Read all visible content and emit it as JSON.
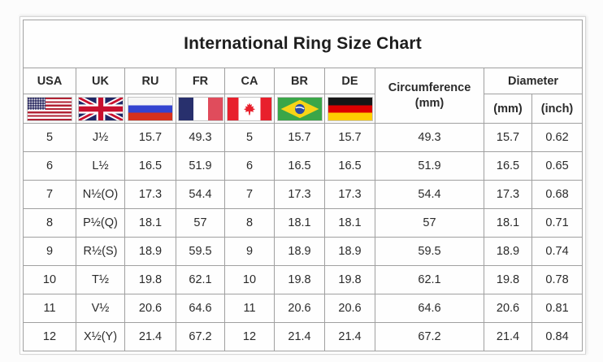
{
  "title": "International Ring Size Chart",
  "header": {
    "countries": [
      {
        "code": "USA",
        "flag_icon": "usa-flag-icon"
      },
      {
        "code": "UK",
        "flag_icon": "uk-flag-icon"
      },
      {
        "code": "RU",
        "flag_icon": "russia-flag-icon"
      },
      {
        "code": "FR",
        "flag_icon": "france-flag-icon"
      },
      {
        "code": "CA",
        "flag_icon": "canada-flag-icon"
      },
      {
        "code": "BR",
        "flag_icon": "brazil-flag-icon"
      },
      {
        "code": "DE",
        "flag_icon": "germany-flag-icon"
      }
    ],
    "circumference": {
      "label": "Circumference",
      "unit": "(mm)"
    },
    "diameter": {
      "label": "Diameter",
      "units": [
        "(mm)",
        "(inch)"
      ]
    }
  },
  "chart_data": {
    "type": "table",
    "title": "International Ring Size Chart",
    "columns": [
      "USA",
      "UK",
      "RU",
      "FR",
      "CA",
      "BR",
      "DE",
      "Circumference (mm)",
      "Diameter (mm)",
      "Diameter (inch)"
    ],
    "rows": [
      [
        "5",
        "J½",
        "15.7",
        "49.3",
        "5",
        "15.7",
        "15.7",
        "49.3",
        "15.7",
        "0.62"
      ],
      [
        "6",
        "L½",
        "16.5",
        "51.9",
        "6",
        "16.5",
        "16.5",
        "51.9",
        "16.5",
        "0.65"
      ],
      [
        "7",
        "N½(O)",
        "17.3",
        "54.4",
        "7",
        "17.3",
        "17.3",
        "54.4",
        "17.3",
        "0.68"
      ],
      [
        "8",
        "P½(Q)",
        "18.1",
        "57",
        "8",
        "18.1",
        "18.1",
        "57",
        "18.1",
        "0.71"
      ],
      [
        "9",
        "R½(S)",
        "18.9",
        "59.5",
        "9",
        "18.9",
        "18.9",
        "59.5",
        "18.9",
        "0.74"
      ],
      [
        "10",
        "T½",
        "19.8",
        "62.1",
        "10",
        "19.8",
        "19.8",
        "62.1",
        "19.8",
        "0.78"
      ],
      [
        "11",
        "V½",
        "20.6",
        "64.6",
        "11",
        "20.6",
        "20.6",
        "64.6",
        "20.6",
        "0.81"
      ],
      [
        "12",
        "X½(Y)",
        "21.4",
        "67.2",
        "12",
        "21.4",
        "21.4",
        "67.2",
        "21.4",
        "0.84"
      ]
    ]
  },
  "colors": {
    "grid": "#a0a0a0",
    "text": "#2b2b2b",
    "flag_red_us": "#b22234",
    "flag_navy_us": "#3c3b6e",
    "flag_navy_uk": "#1f2766",
    "flag_red_uk": "#c8102e",
    "flag_blue_ru": "#3444d0",
    "flag_red_ru": "#d6301d",
    "flag_blue_fr": "#28306d",
    "flag_red_fr": "#e04c5c",
    "flag_red_ca": "#e8202c",
    "flag_green_br": "#3aa648",
    "flag_yellow_br": "#f7d417",
    "flag_blue_br": "#2a4aa5",
    "flag_black_de": "#161616",
    "flag_red_de": "#dd0000",
    "flag_gold_de": "#ffce00"
  }
}
